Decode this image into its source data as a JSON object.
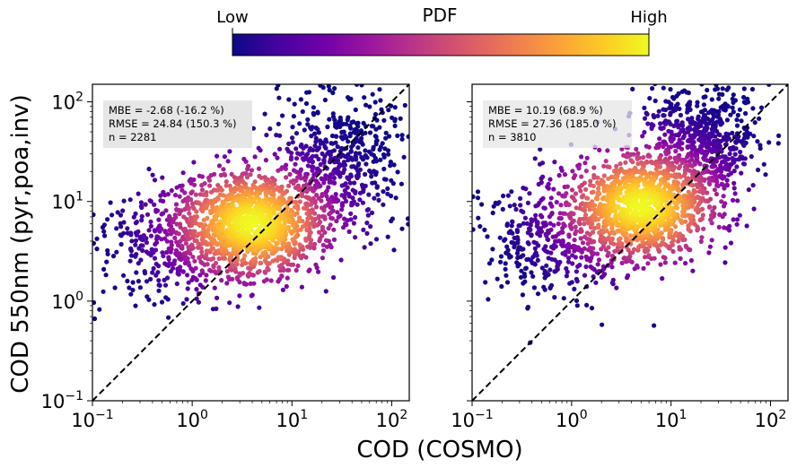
{
  "chart_data": {
    "type": "scatter",
    "figure": {
      "xlabel": "COD (COSMO)",
      "ylabel": "COD 550nm (pyr,poa,inv)",
      "colorbar": {
        "title": "PDF",
        "low_label": "Low",
        "high_label": "High",
        "colormap": "plasma",
        "colors": [
          "#0d0887",
          "#46039f",
          "#7201a8",
          "#9c179e",
          "#bd3786",
          "#d8576b",
          "#ed7953",
          "#fb9f3a",
          "#fdca26",
          "#f0f921"
        ]
      }
    },
    "panels": [
      {
        "id": "left",
        "xscale": "log",
        "yscale": "log",
        "xlim": [
          0.1,
          150
        ],
        "ylim": [
          0.1,
          150
        ],
        "xticks": [
          {
            "base": "10",
            "exp": "−1"
          },
          {
            "base": "10",
            "exp": "0"
          },
          {
            "base": "10",
            "exp": "1"
          },
          {
            "base": "10",
            "exp": "2"
          }
        ],
        "yticks": [
          {
            "base": "10",
            "exp": "−1"
          },
          {
            "base": "10",
            "exp": "0"
          },
          {
            "base": "10",
            "exp": "1"
          },
          {
            "base": "10",
            "exp": "2"
          }
        ],
        "show_yticklabels": true,
        "reference_line": "1:1 dashed",
        "stats": {
          "mbe": "MBE = -2.68 (-16.2 %)",
          "rmse": "RMSE = 24.84 (150.3 %)",
          "n": "n = 2281"
        },
        "n_points": 2281,
        "distribution": {
          "density_peak": {
            "x": 4.0,
            "y": 6.0
          },
          "clusters": [
            {
              "weight": 0.55,
              "x_center": 4.0,
              "y_center": 6.0,
              "x_spread_dec": 0.35,
              "y_spread_dec": 0.25
            },
            {
              "weight": 0.25,
              "x_center": 30,
              "y_center": 25,
              "x_spread_dec": 0.35,
              "y_spread_dec": 0.4
            },
            {
              "weight": 0.2,
              "x_center": 0.8,
              "y_center": 4.0,
              "x_spread_dec": 0.45,
              "y_spread_dec": 0.3
            }
          ]
        }
      },
      {
        "id": "right",
        "xscale": "log",
        "yscale": "log",
        "xlim": [
          0.1,
          150
        ],
        "ylim": [
          0.1,
          150
        ],
        "xticks": [
          {
            "base": "10",
            "exp": "−1"
          },
          {
            "base": "10",
            "exp": "0"
          },
          {
            "base": "10",
            "exp": "1"
          },
          {
            "base": "10",
            "exp": "2"
          }
        ],
        "yticks": [],
        "show_yticklabels": false,
        "reference_line": "1:1 dashed",
        "stats": {
          "mbe": "MBE = 10.19 (68.9 %)",
          "rmse": "RMSE = 27.36 (185.0 %)",
          "n": "n = 3810"
        },
        "n_points": 3810,
        "distribution": {
          "density_peak": {
            "x": 5.0,
            "y": 9.0
          },
          "clusters": [
            {
              "weight": 0.5,
              "x_center": 5.0,
              "y_center": 9.0,
              "x_spread_dec": 0.35,
              "y_spread_dec": 0.25
            },
            {
              "weight": 0.3,
              "x_center": 20,
              "y_center": 40,
              "x_spread_dec": 0.3,
              "y_spread_dec": 0.35
            },
            {
              "weight": 0.2,
              "x_center": 0.7,
              "y_center": 4.0,
              "x_spread_dec": 0.45,
              "y_spread_dec": 0.3
            }
          ]
        }
      }
    ]
  }
}
